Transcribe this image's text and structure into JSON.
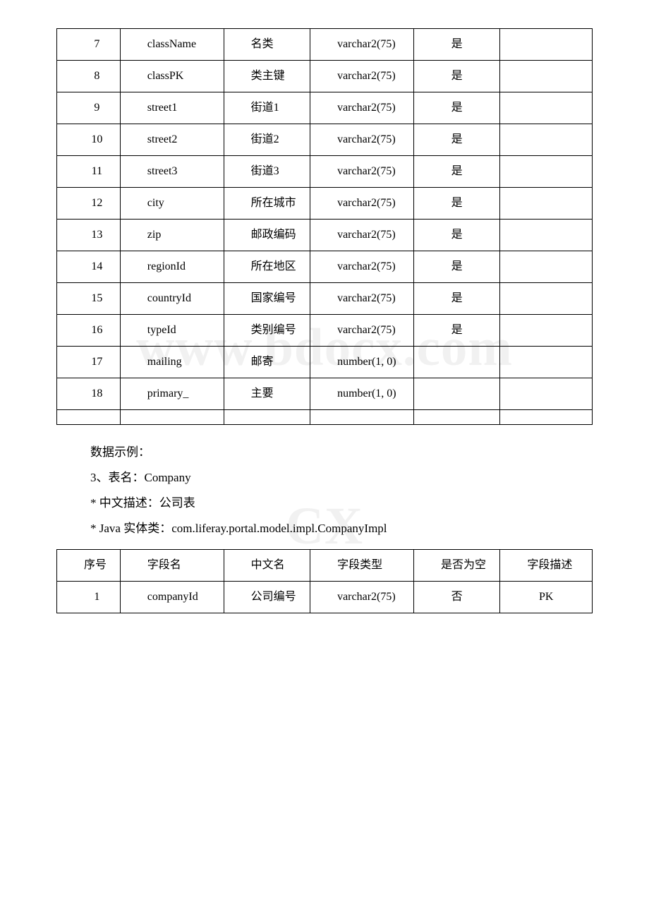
{
  "table1": {
    "rows": [
      {
        "num": "7",
        "field": "className",
        "cn": "名类",
        "type": "varchar2(75)",
        "nullable": "是",
        "desc": ""
      },
      {
        "num": "8",
        "field": "classPK",
        "cn": "类主键",
        "type": "varchar2(75)",
        "nullable": "是",
        "desc": ""
      },
      {
        "num": "9",
        "field": "street1",
        "cn": "街道1",
        "type": "varchar2(75)",
        "nullable": "是",
        "desc": ""
      },
      {
        "num": "10",
        "field": "street2",
        "cn": "街道2",
        "type": "varchar2(75)",
        "nullable": "是",
        "desc": ""
      },
      {
        "num": "11",
        "field": "street3",
        "cn": "街道3",
        "type": "varchar2(75)",
        "nullable": "是",
        "desc": ""
      },
      {
        "num": "12",
        "field": "city",
        "cn": "所在城市",
        "type": "varchar2(75)",
        "nullable": "是",
        "desc": ""
      },
      {
        "num": "13",
        "field": "zip",
        "cn": "邮政编码",
        "type": "varchar2(75)",
        "nullable": "是",
        "desc": ""
      },
      {
        "num": "14",
        "field": "regionId",
        "cn": "所在地区",
        "type": "varchar2(75)",
        "nullable": "是",
        "desc": ""
      },
      {
        "num": "15",
        "field": "countryId",
        "cn": "国家编号",
        "type": "varchar2(75)",
        "nullable": "是",
        "desc": ""
      },
      {
        "num": "16",
        "field": "typeId",
        "cn": "类别编号",
        "type": "varchar2(75)",
        "nullable": "是",
        "desc": ""
      },
      {
        "num": "17",
        "field": "mailing",
        "cn": "邮寄",
        "type": "number(1, 0)",
        "nullable": "",
        "desc": ""
      },
      {
        "num": "18",
        "field": "primary_",
        "cn": "主要",
        "type": "number(1, 0)",
        "nullable": "",
        "desc": ""
      }
    ]
  },
  "middle_text": {
    "line1": "数据示例：",
    "line2": "3、表名：Company",
    "line3": "* 中文描述：公司表",
    "line4": "* Java 实体类：com.liferay.portal.model.impl.CompanyImpl"
  },
  "table2": {
    "headers": {
      "num": "序号",
      "field": "字段名",
      "cn": "中文名",
      "type": "字段类型",
      "nullable": "是否为空",
      "desc": "字段描述"
    },
    "rows": [
      {
        "num": "1",
        "field": "companyId",
        "cn": "公司编号",
        "type": "varchar2(75)",
        "nullable": "否",
        "desc": "PK"
      }
    ]
  },
  "colors": {
    "border": "#000000",
    "text": "#000000",
    "background": "#ffffff",
    "watermark": "rgba(210,210,210,0.3)"
  },
  "typography": {
    "body_font": "Times New Roman, SimSun, serif",
    "cell_fontsize": 16,
    "text_fontsize": 17
  }
}
